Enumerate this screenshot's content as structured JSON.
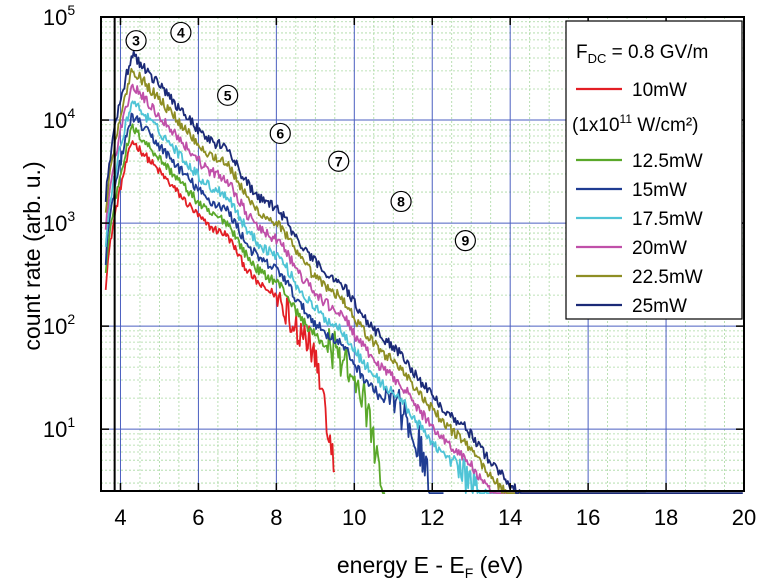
{
  "chart_data": {
    "type": "line",
    "title": "",
    "xlabel": "energy E - E",
    "xlabel_sub": "F",
    "xlabel_unit": "(eV)",
    "ylabel": "count rate (arb. u.)",
    "xlim": [
      3.5,
      20
    ],
    "ylim_log10": [
      0.4,
      5
    ],
    "y_scale": "log",
    "grid": "major and minor",
    "x_ticks": [
      "4",
      "6",
      "8",
      "10",
      "12",
      "14",
      "16",
      "18",
      "20"
    ],
    "y_ticks": [
      {
        "base": "10",
        "exp": "1",
        "log": 1
      },
      {
        "base": "10",
        "exp": "2",
        "log": 2
      },
      {
        "base": "10",
        "exp": "3",
        "log": 3
      },
      {
        "base": "10",
        "exp": "4",
        "log": 4
      },
      {
        "base": "10",
        "exp": "5",
        "log": 5
      }
    ],
    "vertical_line_x": 3.85,
    "peak_labels": [
      {
        "text": "3",
        "x": 4.4,
        "y_log10": 4.77
      },
      {
        "text": "4",
        "x": 5.55,
        "y_log10": 4.85
      },
      {
        "text": "5",
        "x": 6.75,
        "y_log10": 4.24
      },
      {
        "text": "6",
        "x": 8.1,
        "y_log10": 3.87
      },
      {
        "text": "7",
        "x": 9.6,
        "y_log10": 3.6
      },
      {
        "text": "8",
        "x": 11.2,
        "y_log10": 3.21
      },
      {
        "text": "9",
        "x": 12.85,
        "y_log10": 2.83
      }
    ],
    "legend": {
      "position": "top-right",
      "title_main": "F",
      "title_sub": "DC",
      "title_rest": " = 0.8 GV/m",
      "note_pre": "(1x10",
      "note_sup": "11",
      "note_post": " W/cm²)"
    },
    "series": [
      {
        "name": "10mW",
        "color": "#e31e24",
        "peak_log10": 3.8,
        "end_x": 9.5,
        "noise": 0.04
      },
      {
        "name": "12.5mW",
        "color": "#5aa82a",
        "peak_log10": 3.93,
        "end_x": 10.8,
        "noise": 0.045
      },
      {
        "name": "15mW",
        "color": "#1f3c92",
        "peak_log10": 4.05,
        "end_x": 12.3,
        "noise": 0.05
      },
      {
        "name": "17.5mW",
        "color": "#4fc4d6",
        "peak_log10": 4.19,
        "end_x": 14.0,
        "noise": 0.05
      },
      {
        "name": "20mW",
        "color": "#c050a9",
        "peak_log10": 4.34,
        "end_x": 15.8,
        "noise": 0.05
      },
      {
        "name": "22.5mW",
        "color": "#8e8e24",
        "peak_log10": 4.5,
        "end_x": 17.5,
        "noise": 0.05
      },
      {
        "name": "25mW",
        "color": "#1b2a77",
        "peak_log10": 4.64,
        "end_x": 20.0,
        "noise": 0.05
      }
    ]
  }
}
